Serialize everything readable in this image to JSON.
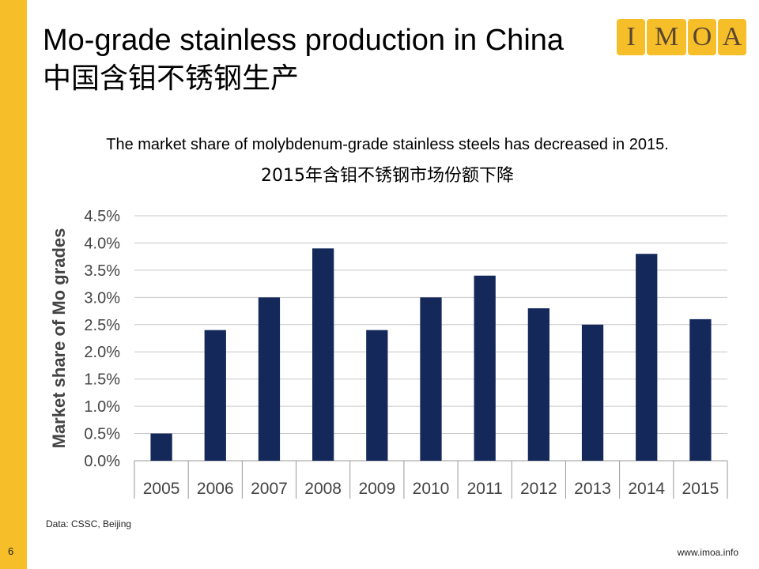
{
  "slide": {
    "number": "6",
    "title_en": "Mo-grade stainless production in China",
    "title_zh": "中国含钼不锈钢生产",
    "subtitle_en": "The market share of molybdenum-grade stainless steels has decreased in 2015.",
    "subtitle_zh": "2015年含钼不锈钢市场份额下降",
    "source": "Data: CSSC, Beijing",
    "url": "www.imoa.info",
    "logo_letters": [
      "I",
      "M",
      "O",
      "A"
    ]
  },
  "colors": {
    "accent": "#f6bf2a",
    "bar": "#14285a",
    "grid": "#c8c8c8"
  },
  "chart_data": {
    "type": "bar",
    "title": "",
    "xlabel": "",
    "ylabel": "Market share of Mo grades",
    "categories": [
      "2005",
      "2006",
      "2007",
      "2008",
      "2009",
      "2010",
      "2011",
      "2012",
      "2013",
      "2014",
      "2015"
    ],
    "values": [
      0.5,
      2.4,
      3.0,
      3.9,
      2.4,
      3.0,
      3.4,
      2.8,
      2.5,
      3.8,
      2.6
    ],
    "ylim": [
      0,
      4.5
    ],
    "yticks": [
      "0.0%",
      "0.5%",
      "1.0%",
      "1.5%",
      "2.0%",
      "2.5%",
      "3.0%",
      "3.5%",
      "4.0%",
      "4.5%"
    ],
    "unit": "%",
    "grid": true,
    "legend": "none"
  }
}
